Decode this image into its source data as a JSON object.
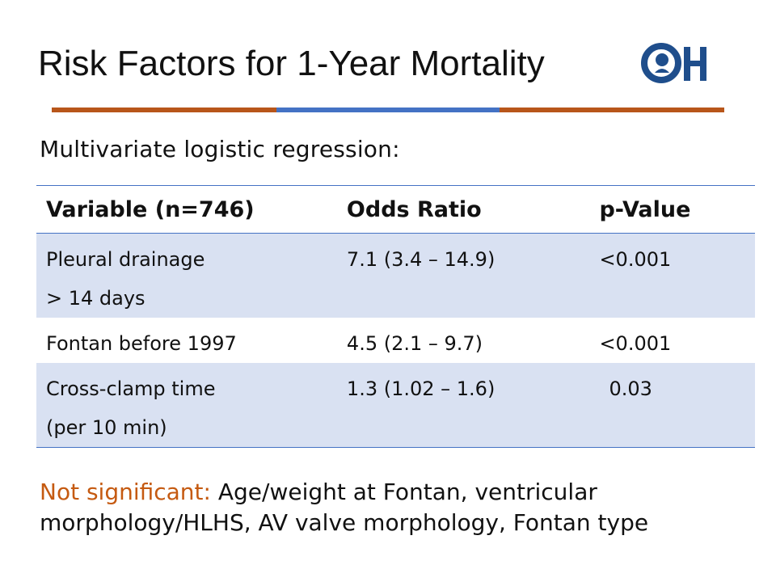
{
  "slide": {
    "title": "Risk Factors for 1-Year Mortality",
    "logo_text": "CH",
    "subtitle": "Multivariate logistic regression:",
    "colors": {
      "accent_orange": "#b8561a",
      "accent_blue": "#4472c4",
      "row_shade": "#d9e1f2",
      "note_label": "#c55a11"
    }
  },
  "table": {
    "headers": [
      "Variable (n=746)",
      "Odds Ratio",
      "p-Value"
    ],
    "rows": [
      {
        "variable_line1": "Pleural drainage",
        "variable_line2": "> 14 days",
        "odds_ratio": "7.1 (3.4 – 14.9)",
        "p_value": "<0.001"
      },
      {
        "variable_line1": "Fontan before 1997",
        "variable_line2": "",
        "odds_ratio": "4.5 (2.1 – 9.7)",
        "p_value": "<0.001"
      },
      {
        "variable_line1": "Cross-clamp time",
        "variable_line2": "(per 10 min)",
        "odds_ratio": "1.3 (1.02 – 1.6)",
        "p_value": "0.03"
      }
    ]
  },
  "note": {
    "label": "Not significant:",
    "text": "Age/weight at Fontan, ventricular morphology/HLHS, AV valve morphology, Fontan type"
  }
}
